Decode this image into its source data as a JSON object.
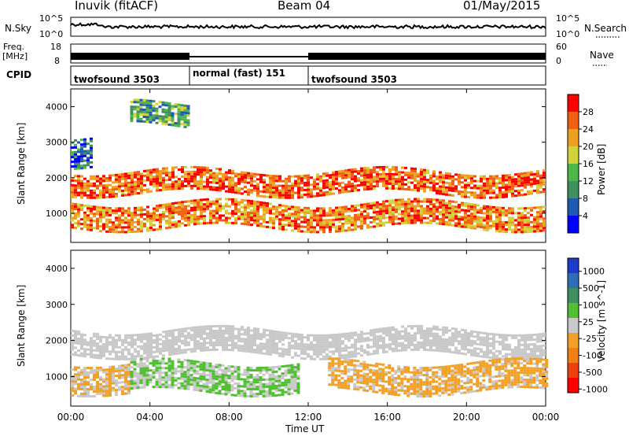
{
  "header": {
    "station": "Inuvik (fitACF)",
    "beam": "Beam 04",
    "date": "01/May/2015"
  },
  "strips": {
    "nsky_label": "N.Sky",
    "nsky_ticks": [
      "10^5",
      "10^0"
    ],
    "nsearch_label": "N.Search",
    "nsearch_ticks": [
      "10^5",
      "10^0"
    ],
    "freq_label_1": "Freq.",
    "freq_label_2": "[MHz]",
    "freq_ticks": [
      "18",
      "8"
    ],
    "nave_label": "Nave",
    "nave_ticks": [
      "60",
      "0"
    ],
    "cpid_label": "CPID",
    "cpid_segments": [
      {
        "label": "twofsound 3503",
        "start_h": 0,
        "end_h": 6
      },
      {
        "label": "normal (fast) 151",
        "start_h": 6,
        "end_h": 12
      },
      {
        "label": "twofsound 3503",
        "start_h": 12,
        "end_h": 24
      }
    ]
  },
  "chart_data": [
    {
      "type": "heatmap",
      "quantity": "Power",
      "ylabel": "Slant Range [km]",
      "yticks": [
        "1000",
        "2000",
        "3000",
        "4000"
      ],
      "ylim": [
        180,
        4500
      ],
      "colorbar_label": "Power [dB]",
      "colorbar_ticks": [
        "4",
        "8",
        "12",
        "16",
        "20",
        "24",
        "28"
      ],
      "colorbar_range": [
        0,
        32
      ],
      "colors": [
        "#0000ff",
        "#1e5ab4",
        "#3f8f5f",
        "#4db848",
        "#d2d23c",
        "#f0a020",
        "#f06010",
        "#ff0000"
      ],
      "bands": [
        {
          "range_km": [
            600,
            1300
          ],
          "start_h": 0.0,
          "end_h": 24.0,
          "level_db": 24
        },
        {
          "range_km": [
            1600,
            2200
          ],
          "start_h": 0.0,
          "end_h": 24.0,
          "level_db": 26
        },
        {
          "range_km": [
            2400,
            3200
          ],
          "start_h": 0.0,
          "end_h": 1.0,
          "level_db": 8
        },
        {
          "range_km": [
            3500,
            4100
          ],
          "start_h": 3.0,
          "end_h": 6.0,
          "level_db": 12
        }
      ]
    },
    {
      "type": "heatmap",
      "quantity": "Velocity",
      "ylabel": "Slant Range [km]",
      "yticks": [
        "1000",
        "2000",
        "3000",
        "4000"
      ],
      "ylim": [
        180,
        4500
      ],
      "colorbar_label": "Velocity [m s^-1]",
      "colorbar_ticks": [
        "1000",
        "500",
        "100",
        "25",
        "-25",
        "-100",
        "-500",
        "-1000"
      ],
      "colorbar_range": [
        -1200,
        1200
      ],
      "colors": [
        "#1e3cc8",
        "#2d6eb4",
        "#3f8f5f",
        "#50c030",
        "#c8c8c8",
        "#f0a028",
        "#f08010",
        "#f04010",
        "#ff0000"
      ],
      "bands": [
        {
          "range_km": [
            1600,
            2300
          ],
          "start_h": 0.0,
          "end_h": 24.0,
          "velocity": 0
        },
        {
          "range_km": [
            600,
            1400
          ],
          "start_h": 0.0,
          "end_h": 3.0,
          "velocity": -150
        },
        {
          "range_km": [
            600,
            1400
          ],
          "start_h": 3.0,
          "end_h": 11.5,
          "velocity": 150
        },
        {
          "range_km": [
            600,
            1400
          ],
          "start_h": 13.0,
          "end_h": 24.0,
          "velocity": -200
        }
      ]
    }
  ],
  "time_axis": {
    "xlabel": "Time UT",
    "ticks": [
      "00:00",
      "04:00",
      "08:00",
      "12:00",
      "16:00",
      "20:00",
      "00:00"
    ]
  }
}
